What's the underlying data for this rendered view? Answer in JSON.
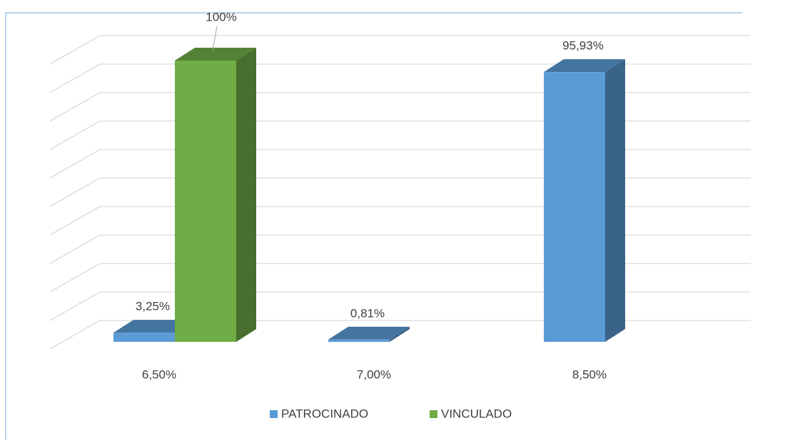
{
  "chart_data": {
    "type": "bar3d",
    "categories": [
      "6,50%",
      "7,00%",
      "8,50%"
    ],
    "series": [
      {
        "name": "PATROCINADO",
        "color": "#5b9bd5",
        "values": [
          3.25,
          0.81,
          95.93
        ],
        "value_labels": [
          "3,25%",
          "0,81%",
          "95,93%"
        ]
      },
      {
        "name": "VINCULADO",
        "color": "#70ad47",
        "values": [
          100,
          null,
          null
        ],
        "value_labels": [
          "100%",
          null,
          null
        ]
      }
    ],
    "ylim": [
      0,
      100
    ],
    "yticks": [
      0,
      10,
      20,
      30,
      40,
      50,
      60,
      70,
      80,
      90,
      100
    ],
    "grid": true,
    "legend": "bottom"
  }
}
